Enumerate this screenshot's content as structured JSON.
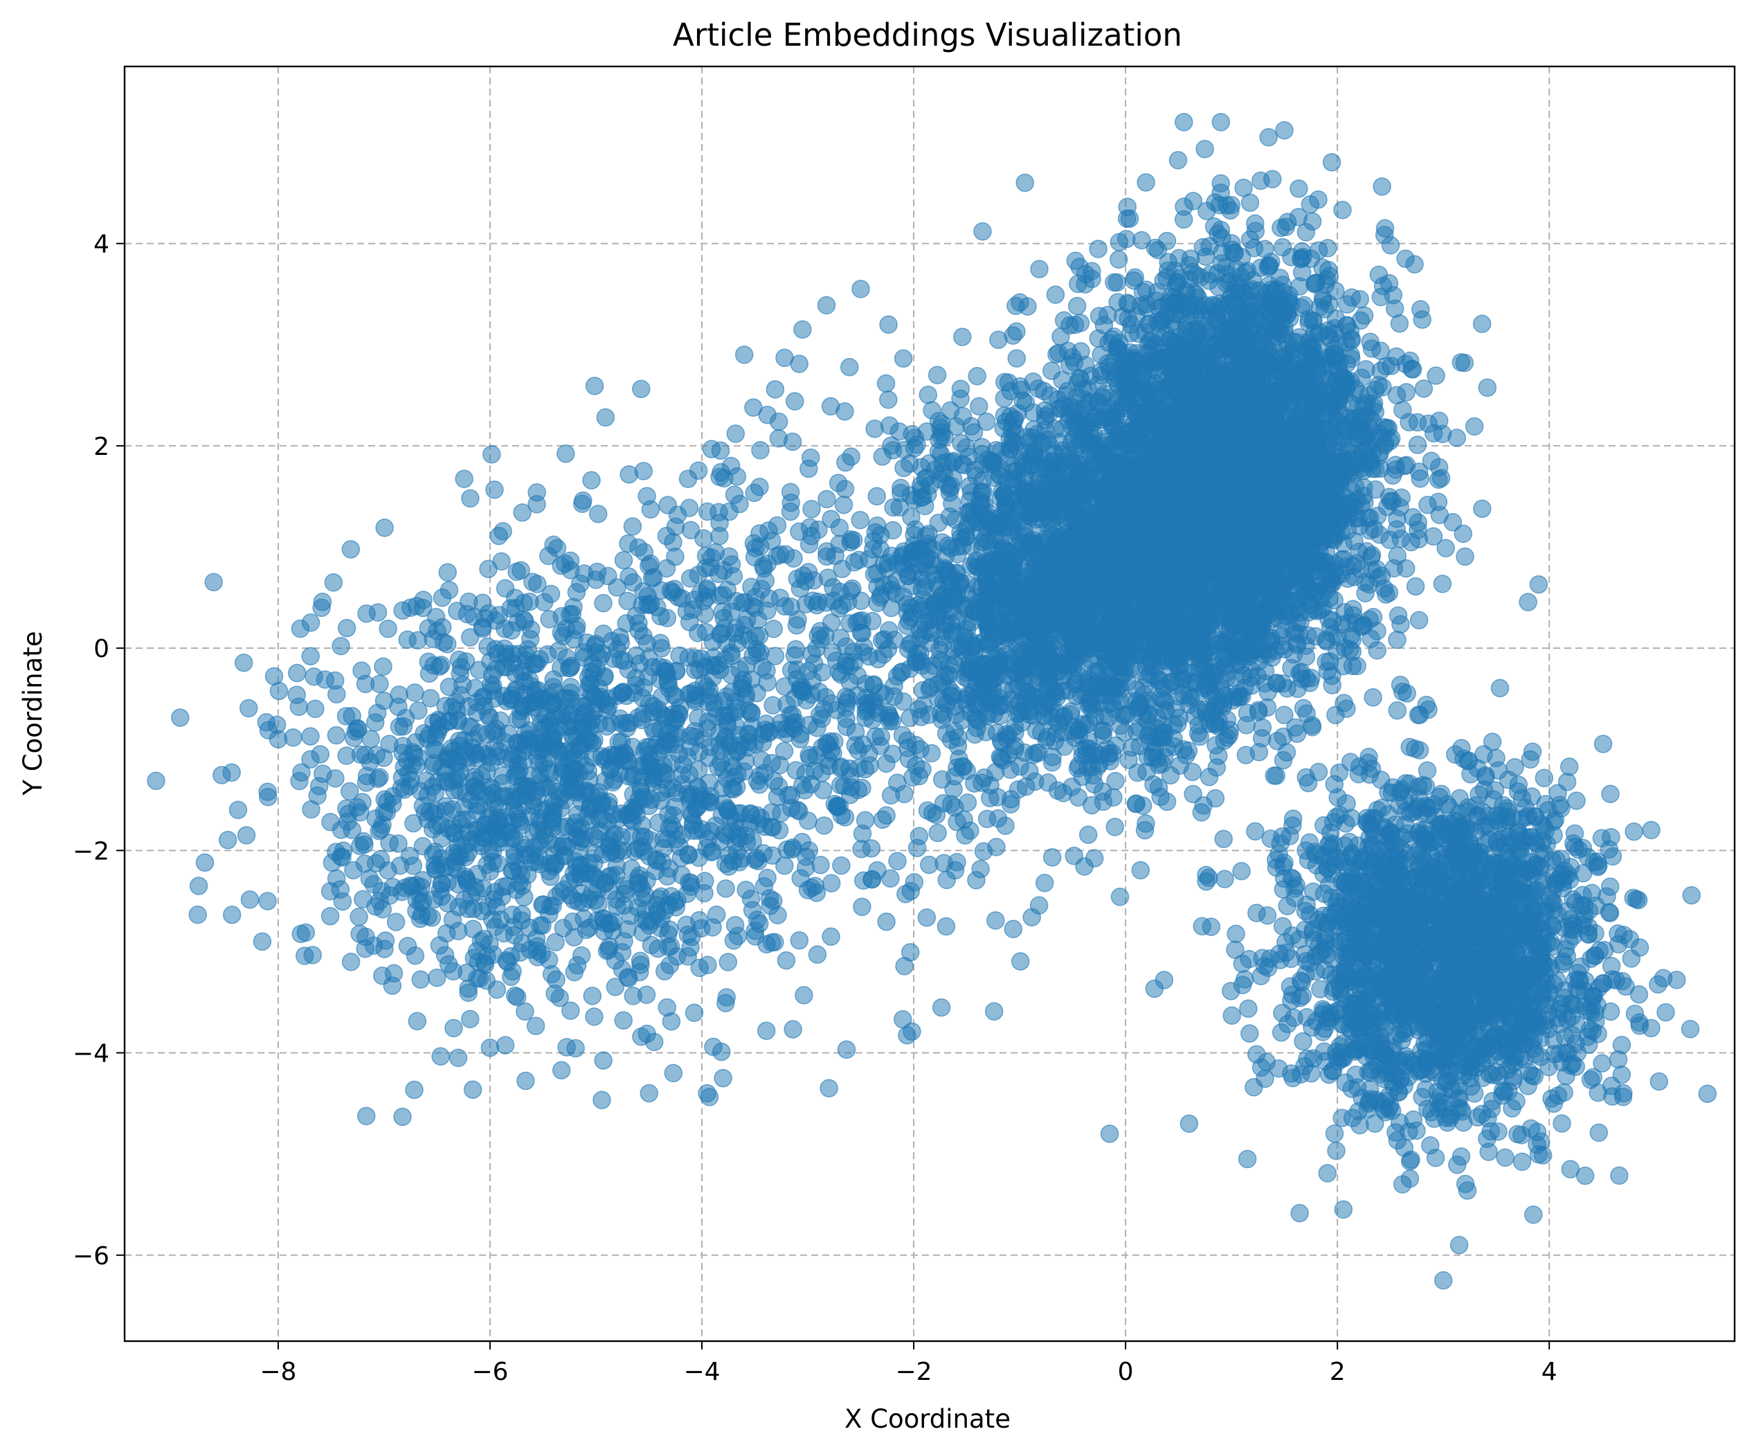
{
  "chart_data": {
    "type": "scatter",
    "title": "Article Embeddings Visualization",
    "xlabel": "X Coordinate",
    "ylabel": "Y Coordinate",
    "xlim": [
      -9.45,
      5.75
    ],
    "ylim": [
      -6.85,
      5.75
    ],
    "xticks": [
      -8,
      -6,
      -4,
      -2,
      0,
      2,
      4
    ],
    "yticks": [
      -6,
      -4,
      -2,
      0,
      2,
      4
    ],
    "xtick_labels": [
      "−8",
      "−6",
      "−4",
      "−2",
      "0",
      "2",
      "4"
    ],
    "ytick_labels": [
      "−6",
      "−4",
      "−2",
      "0",
      "2",
      "4"
    ],
    "grid": true,
    "marker_color": "#1f77b4",
    "marker_alpha": 0.5,
    "point_count": 10000,
    "clusters": [
      {
        "label": "upper-right cluster",
        "center": [
          1.0,
          1.8
        ],
        "spread": [
          0.75,
          1.0
        ],
        "points": 3500
      },
      {
        "label": "center cluster",
        "center": [
          -0.4,
          0.6
        ],
        "spread": [
          0.9,
          0.9
        ],
        "points": 2200
      },
      {
        "label": "lower-right cluster",
        "center": [
          3.0,
          -3.0
        ],
        "spread": [
          0.75,
          0.8
        ],
        "points": 2200
      },
      {
        "label": "left cluster",
        "center": [
          -5.5,
          -1.4
        ],
        "spread": [
          1.2,
          1.1
        ],
        "points": 1400
      },
      {
        "label": "mid-left cluster",
        "center": [
          -3.0,
          -0.3
        ],
        "spread": [
          1.3,
          1.3
        ],
        "points": 700
      }
    ],
    "sample_points": [
      {
        "x": -8.75,
        "y": -2.35
      },
      {
        "x": -8.1,
        "y": -1.42
      },
      {
        "x": -8.0,
        "y": -0.9
      },
      {
        "x": -6.3,
        "y": -4.05
      },
      {
        "x": -6.0,
        "y": -3.95
      },
      {
        "x": -3.95,
        "y": -4.4
      },
      {
        "x": -3.8,
        "y": -4.25
      },
      {
        "x": -2.8,
        "y": -4.35
      },
      {
        "x": -0.15,
        "y": -4.8
      },
      {
        "x": 0.55,
        "y": 5.2
      },
      {
        "x": 0.9,
        "y": 5.2
      },
      {
        "x": 1.35,
        "y": 5.05
      },
      {
        "x": -0.95,
        "y": 4.6
      },
      {
        "x": -1.35,
        "y": 4.12
      },
      {
        "x": 2.45,
        "y": 4.15
      },
      {
        "x": 3.2,
        "y": 2.82
      },
      {
        "x": 3.9,
        "y": 0.63
      },
      {
        "x": 5.1,
        "y": -3.6
      },
      {
        "x": 3.0,
        "y": -6.25
      },
      {
        "x": 3.15,
        "y": -5.9
      },
      {
        "x": 3.85,
        "y": -5.6
      },
      {
        "x": -3.6,
        "y": 2.9
      },
      {
        "x": -3.05,
        "y": 3.15
      },
      {
        "x": -2.5,
        "y": 3.55
      },
      {
        "x": -4.55,
        "y": 1.75
      },
      {
        "x": -6.4,
        "y": 0.75
      },
      {
        "x": -6.75,
        "y": 0.4
      },
      {
        "x": -7.65,
        "y": -0.6
      },
      {
        "x": -8.3,
        "y": -1.85
      },
      {
        "x": -8.15,
        "y": -2.9
      },
      {
        "x": 0.6,
        "y": -4.7
      },
      {
        "x": 1.15,
        "y": -5.05
      },
      {
        "x": 4.2,
        "y": -5.15
      },
      {
        "x": 4.7,
        "y": -4.4
      },
      {
        "x": 4.85,
        "y": -3.7
      },
      {
        "x": 4.1,
        "y": -1.55
      }
    ]
  }
}
